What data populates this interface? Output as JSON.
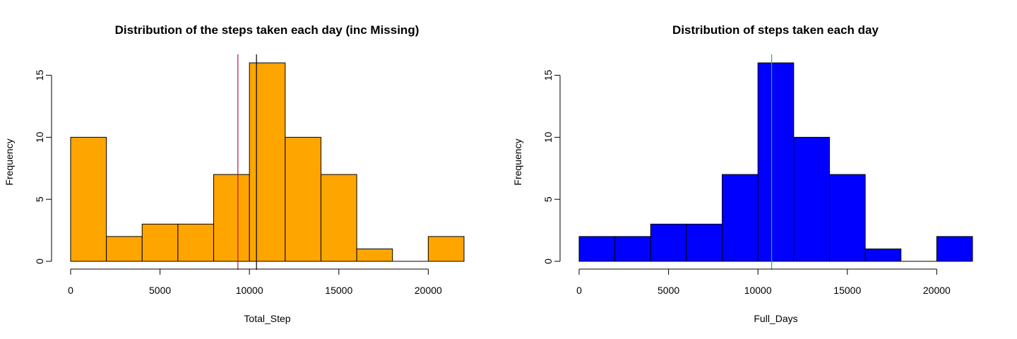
{
  "chart_data": [
    {
      "type": "bar",
      "title": "Distribution of the steps taken each day (inc Missing)",
      "xlabel": "Total_Step",
      "ylabel": "Frequency",
      "bin_edges": [
        0,
        2000,
        4000,
        6000,
        8000,
        10000,
        12000,
        14000,
        16000,
        18000,
        20000,
        22000
      ],
      "values": [
        10,
        2,
        3,
        3,
        7,
        16,
        10,
        7,
        1,
        0,
        2
      ],
      "bar_color": "#FFA500",
      "xlim": [
        0,
        22000
      ],
      "ylim": [
        0,
        16
      ],
      "xticks": [
        "0",
        "5000",
        "10000",
        "15000",
        "20000"
      ],
      "yticks": [
        "0",
        "5",
        "10",
        "15"
      ],
      "vlines": [
        {
          "x": 9354,
          "color": "#B0183E"
        },
        {
          "x": 10395,
          "color": "#000000"
        }
      ],
      "grid": false
    },
    {
      "type": "bar",
      "title": "Distribution of steps taken each day",
      "xlabel": "Full_Days",
      "ylabel": "Frequency",
      "bin_edges": [
        0,
        2000,
        4000,
        6000,
        8000,
        10000,
        12000,
        14000,
        16000,
        18000,
        20000,
        22000
      ],
      "values": [
        2,
        2,
        3,
        3,
        7,
        16,
        10,
        7,
        1,
        0,
        2
      ],
      "bar_color": "#0000FF",
      "xlim": [
        0,
        22000
      ],
      "ylim": [
        0,
        16
      ],
      "xticks": [
        "0",
        "5000",
        "10000",
        "15000",
        "20000"
      ],
      "yticks": [
        "0",
        "5",
        "10",
        "15"
      ],
      "vlines": [
        {
          "x": 10766,
          "color": "#00CC44"
        }
      ],
      "grid": false
    }
  ]
}
